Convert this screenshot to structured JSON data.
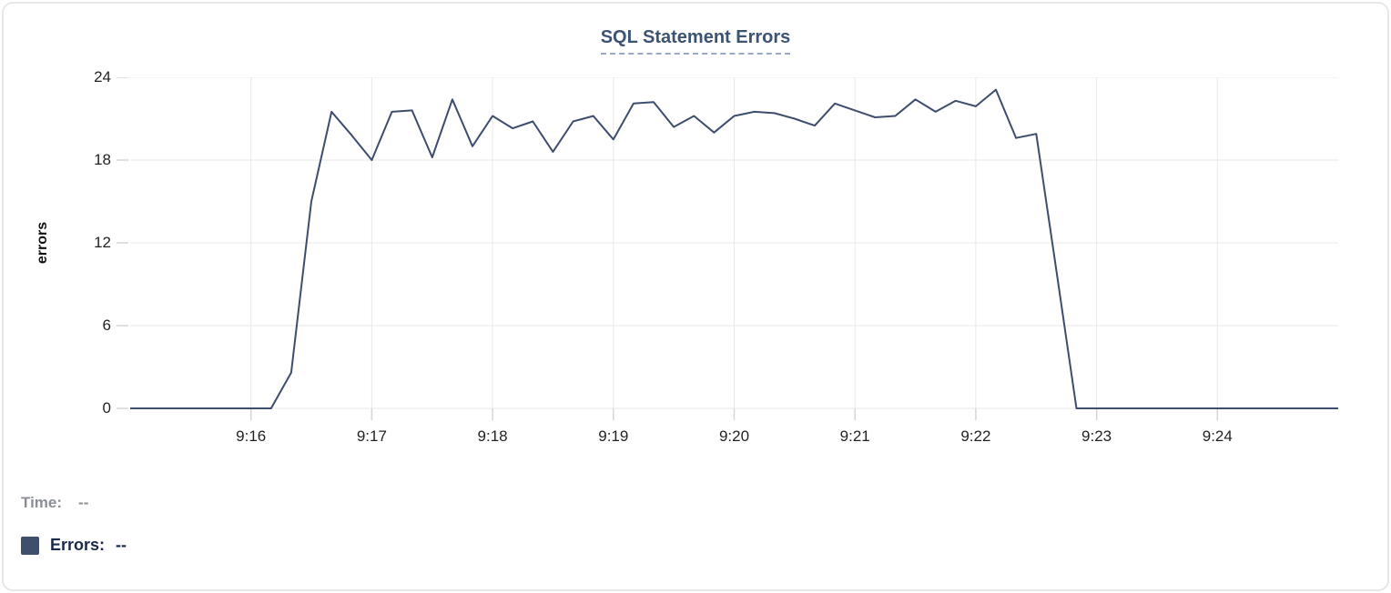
{
  "chart": {
    "title": "SQL Statement Errors",
    "ylabel": "errors"
  },
  "legend": {
    "time_label": "Time:",
    "time_value": "--",
    "errors_label": "Errors:",
    "errors_value": "--"
  },
  "colors": {
    "line": "#3d4d6d",
    "swatch": "#3f4f6b",
    "title": "#3c5373",
    "title_underline": "#9aa8c6",
    "gridline": "#e9e9e9",
    "axis_tick": "#d6d6d6",
    "time_text": "#8a8e95",
    "errors_text": "#1b2a4c"
  },
  "chart_data": {
    "type": "line",
    "title": "SQL Statement Errors",
    "xlabel": "",
    "ylabel": "errors",
    "series_name": "Errors",
    "legend_entries": [
      "Time",
      "Errors"
    ],
    "x_start": "9:15:00",
    "x_end": "9:25:00",
    "x_interval_seconds": 10,
    "x_tick_labels": [
      "9:16",
      "9:17",
      "9:18",
      "9:19",
      "9:20",
      "9:21",
      "9:22",
      "9:23",
      "9:24"
    ],
    "x_tick_minutes": [
      1,
      2,
      3,
      4,
      5,
      6,
      7,
      8,
      9
    ],
    "x_total_minutes": 10,
    "y_ticks": [
      0,
      6,
      12,
      18,
      24
    ],
    "ylim": [
      0,
      24
    ],
    "grid": true,
    "legend_position": "bottom-left",
    "values": [
      0,
      0,
      0,
      0,
      0,
      0,
      0,
      0,
      2.6,
      15,
      21.5,
      19.8,
      18,
      21.5,
      21.6,
      18.2,
      22.4,
      19,
      21.2,
      20.3,
      20.8,
      18.6,
      20.8,
      21.2,
      19.5,
      22.1,
      22.2,
      20.4,
      21.2,
      20,
      21.2,
      21.5,
      21.4,
      21,
      20.5,
      22.1,
      21.6,
      21.1,
      21.2,
      22.4,
      21.5,
      22.3,
      21.9,
      23.1,
      19.6,
      19.9,
      10,
      0,
      0,
      0,
      0,
      0,
      0,
      0,
      0,
      0,
      0,
      0,
      0,
      0,
      0
    ]
  }
}
